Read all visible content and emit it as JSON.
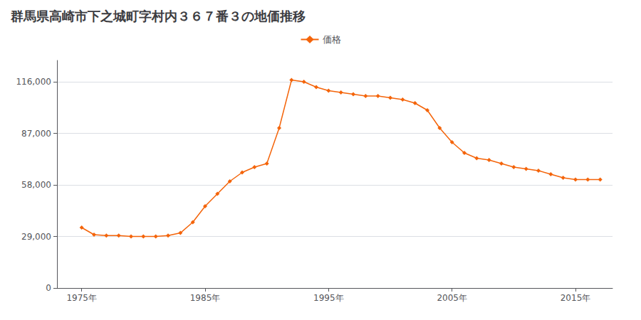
{
  "chart_data": {
    "type": "line",
    "title": "群馬県高崎市下之城町字村内３６７番３の地価推移",
    "x": [
      1975,
      1976,
      1977,
      1978,
      1979,
      1980,
      1981,
      1982,
      1983,
      1984,
      1985,
      1986,
      1987,
      1988,
      1989,
      1990,
      1991,
      1992,
      1993,
      1994,
      1995,
      1996,
      1997,
      1998,
      1999,
      2000,
      2001,
      2002,
      2003,
      2004,
      2005,
      2006,
      2007,
      2008,
      2009,
      2010,
      2011,
      2012,
      2013,
      2014,
      2015,
      2016,
      2017
    ],
    "series": [
      {
        "name": "価格",
        "color": "#F4640A",
        "marker": "diamond",
        "values": [
          34000,
          30000,
          29500,
          29500,
          29000,
          29000,
          29000,
          29500,
          31000,
          37000,
          46000,
          53000,
          60000,
          65000,
          68000,
          70000,
          90000,
          117000,
          116000,
          113000,
          111000,
          110000,
          109000,
          108000,
          108000,
          107000,
          106000,
          104000,
          100000,
          90000,
          82000,
          76000,
          73000,
          72000,
          70000,
          68000,
          67000,
          66000,
          64000,
          62000,
          61000,
          61000,
          61000
        ]
      }
    ],
    "xlim": [
      1973,
      2018
    ],
    "xticks": [
      {
        "value": 1975,
        "label": "1975年"
      },
      {
        "value": 1985,
        "label": "1985年"
      },
      {
        "value": 1995,
        "label": "1995年"
      },
      {
        "value": 2005,
        "label": "2005年"
      },
      {
        "value": 2015,
        "label": "2015年"
      }
    ],
    "ylim": [
      0,
      128000
    ],
    "yticks": [
      0,
      {
        "value": 29000,
        "label": "29,000"
      },
      {
        "value": 58000,
        "label": "58,000"
      },
      {
        "value": 87000,
        "label": "87,000"
      },
      {
        "value": 116000,
        "label": "116,000"
      }
    ],
    "grid": "y",
    "legend": "top"
  }
}
